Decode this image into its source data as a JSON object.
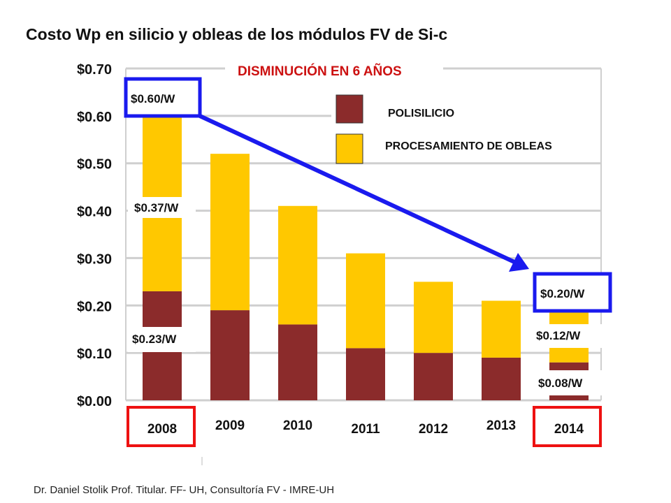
{
  "title": "Costo Wp en silicio y obleas de los módulos FV de Si-c",
  "subtitle": "DISMINUCIÓN EN 6 AÑOS",
  "footer": "Dr. Daniel Stolik Prof. Titular. FF- UH, Consultoría FV - IMRE-UH",
  "colors": {
    "polysilicon": "#8b2b2b",
    "wafer": "#ffc800",
    "highlight_blue": "#1a1aee",
    "highlight_red": "#ee1111",
    "subtitle_red": "#cc1111"
  },
  "chart_data": {
    "type": "bar",
    "stacked": true,
    "categories": [
      "2008",
      "2009",
      "2010",
      "2011",
      "2012",
      "2013",
      "2014"
    ],
    "series": [
      {
        "name": "POLISILICIO",
        "values": [
          0.23,
          0.19,
          0.16,
          0.11,
          0.1,
          0.09,
          0.08
        ]
      },
      {
        "name": "PROCESAMIENTO DE OBLEAS",
        "values": [
          0.37,
          0.33,
          0.25,
          0.2,
          0.15,
          0.12,
          0.12
        ]
      }
    ],
    "ylim": [
      0,
      0.7
    ],
    "yticks": [
      "$0.00",
      "$0.10",
      "$0.20",
      "$0.30",
      "$0.40",
      "$0.50",
      "$0.60",
      "$0.70"
    ],
    "grid": true,
    "legend": "top-right",
    "annotations": {
      "total_2008": "$0.60/W",
      "wafer_2008": "$0.37/W",
      "poly_2008": "$0.23/W",
      "total_2014": "$0.20/W",
      "wafer_2014": "$0.12/W",
      "poly_2014": "$0.08/W"
    }
  }
}
